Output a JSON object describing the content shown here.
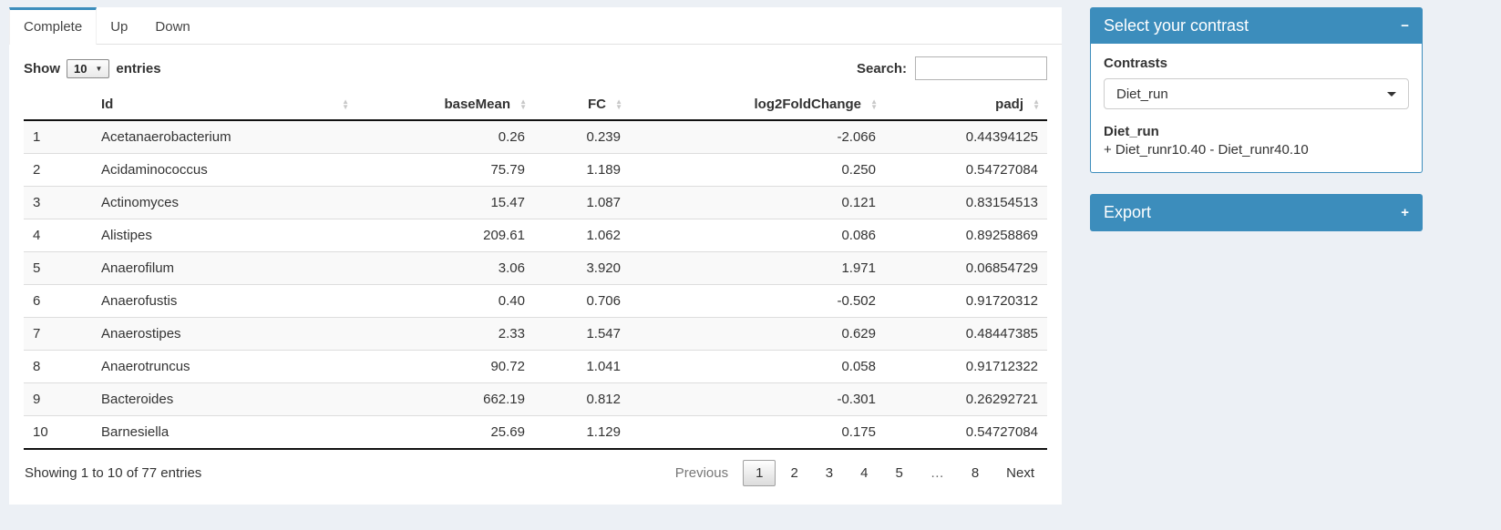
{
  "tabs": [
    {
      "label": "Complete",
      "active": true
    },
    {
      "label": "Up",
      "active": false
    },
    {
      "label": "Down",
      "active": false
    }
  ],
  "controls": {
    "show_label": "Show",
    "page_length": "10",
    "entries_label": "entries",
    "search_label": "Search:",
    "search_value": ""
  },
  "table": {
    "columns": [
      "Id",
      "baseMean",
      "FC",
      "log2FoldChange",
      "padj"
    ],
    "rows": [
      {
        "n": "1",
        "id": "Acetanaerobacterium",
        "baseMean": "0.26",
        "fc": "0.239",
        "log2fc": "-2.066",
        "padj": "0.44394125"
      },
      {
        "n": "2",
        "id": "Acidaminococcus",
        "baseMean": "75.79",
        "fc": "1.189",
        "log2fc": "0.250",
        "padj": "0.54727084"
      },
      {
        "n": "3",
        "id": "Actinomyces",
        "baseMean": "15.47",
        "fc": "1.087",
        "log2fc": "0.121",
        "padj": "0.83154513"
      },
      {
        "n": "4",
        "id": "Alistipes",
        "baseMean": "209.61",
        "fc": "1.062",
        "log2fc": "0.086",
        "padj": "0.89258869"
      },
      {
        "n": "5",
        "id": "Anaerofilum",
        "baseMean": "3.06",
        "fc": "3.920",
        "log2fc": "1.971",
        "padj": "0.06854729"
      },
      {
        "n": "6",
        "id": "Anaerofustis",
        "baseMean": "0.40",
        "fc": "0.706",
        "log2fc": "-0.502",
        "padj": "0.91720312"
      },
      {
        "n": "7",
        "id": "Anaerostipes",
        "baseMean": "2.33",
        "fc": "1.547",
        "log2fc": "0.629",
        "padj": "0.48447385"
      },
      {
        "n": "8",
        "id": "Anaerotruncus",
        "baseMean": "90.72",
        "fc": "1.041",
        "log2fc": "0.058",
        "padj": "0.91712322"
      },
      {
        "n": "9",
        "id": "Bacteroides",
        "baseMean": "662.19",
        "fc": "0.812",
        "log2fc": "-0.301",
        "padj": "0.26292721"
      },
      {
        "n": "10",
        "id": "Barnesiella",
        "baseMean": "25.69",
        "fc": "1.129",
        "log2fc": "0.175",
        "padj": "0.54727084"
      }
    ]
  },
  "footer": {
    "info": "Showing 1 to 10 of 77 entries",
    "previous": "Previous",
    "pages": [
      "1",
      "2",
      "3",
      "4",
      "5",
      "…",
      "8"
    ],
    "current_page": "1",
    "next": "Next"
  },
  "contrast_box": {
    "title": "Select your contrast",
    "collapse_icon": "−",
    "contrasts_label": "Contrasts",
    "selected": "Diet_run",
    "detail_name": "Diet_run",
    "detail_formula": "+ Diet_runr10.40 - Diet_runr40.10"
  },
  "export_box": {
    "title": "Export",
    "expand_icon": "+"
  },
  "colors": {
    "accent": "#3c8dbc",
    "page_bg": "#ecf0f5",
    "stripe": "#f9f9f9"
  }
}
